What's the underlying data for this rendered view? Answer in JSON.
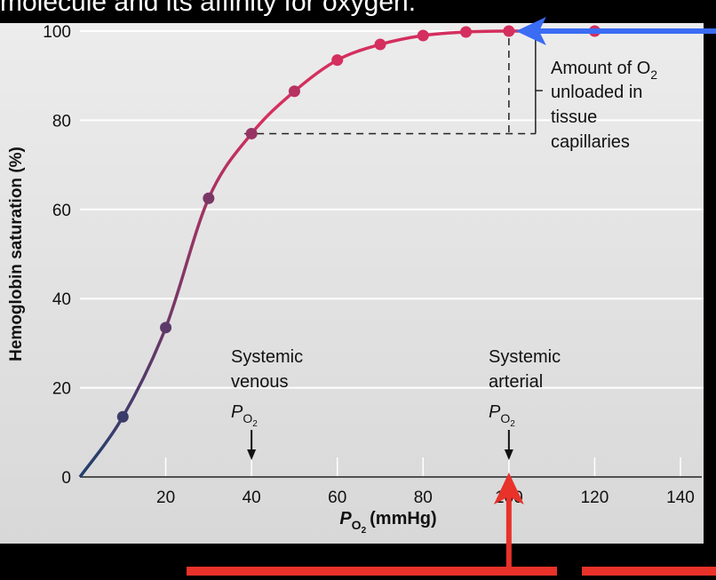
{
  "heading_fragment": "molecule and its affinity for oxygen.",
  "colors": {
    "background": "#000000",
    "plot_top": "#ececec",
    "plot_bottom": "#d8d8d8",
    "curve_low": "#1e3f6e",
    "curve_high": "#d42f5e",
    "blue_arrow": "#3a6cf4",
    "red_arrow": "#e8322a",
    "bottom_box": "#e8322a"
  },
  "chart_data": {
    "type": "line",
    "xlabel_main": "P",
    "xlabel_sub": "O",
    "xlabel_sub2": "2",
    "xlabel_unit": "(mmHg)",
    "ylabel": "Hemoglobin saturation (%)",
    "xlim": [
      0,
      140
    ],
    "ylim": [
      0,
      100
    ],
    "x_ticks": [
      "20",
      "40",
      "60",
      "80",
      "100",
      "120",
      "140"
    ],
    "y_ticks": [
      "0",
      "20",
      "40",
      "60",
      "80",
      "100"
    ],
    "grid": "horizontal",
    "series": [
      {
        "x": [
          0,
          10,
          20,
          30,
          40,
          50,
          60,
          70,
          80,
          90,
          100,
          120
        ],
        "y": [
          0,
          13.5,
          33.5,
          62.5,
          77,
          86.5,
          93.5,
          97,
          99,
          99.8,
          100,
          100
        ]
      }
    ],
    "annotations": {
      "unloaded": {
        "line1": "Amount of O",
        "line1_sub": "2",
        "line2": "unloaded in",
        "line3": "tissue",
        "line4": "capillaries",
        "from_y": 77,
        "to_y": 100,
        "from_x": 40,
        "to_x": 100
      },
      "venous": {
        "line1": "Systemic",
        "line2": "venous",
        "p": "P",
        "sub": "O",
        "sub2": "2",
        "x": 40
      },
      "arterial": {
        "line1": "Systemic",
        "line2": "arterial",
        "p": "P",
        "sub": "O",
        "sub2": "2",
        "x": 100
      }
    }
  }
}
